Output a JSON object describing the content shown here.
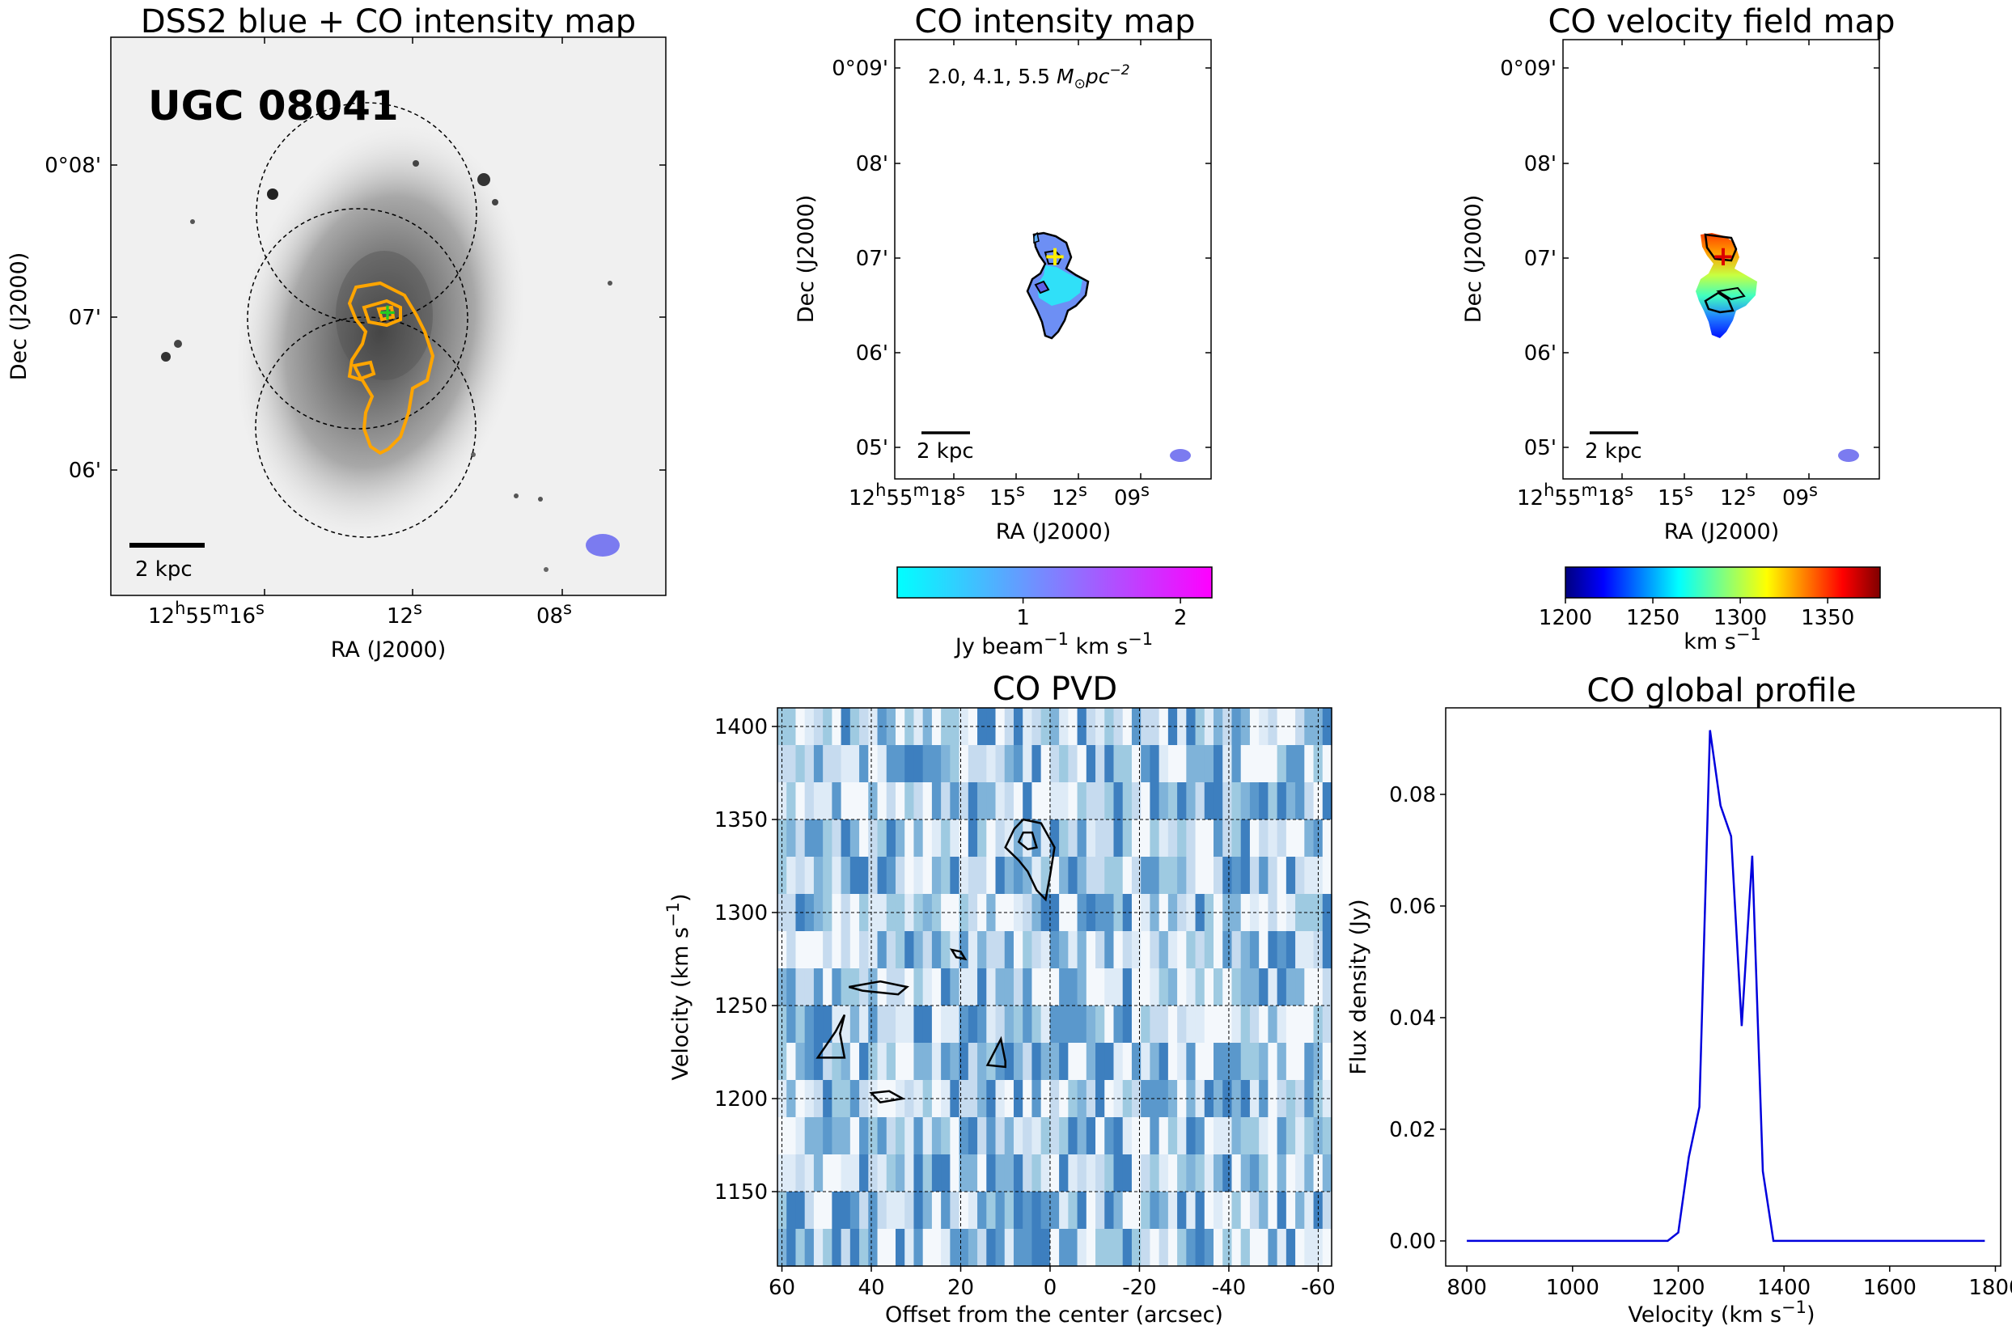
{
  "chart_data": [
    {
      "type": "image",
      "title": "DSS2 blue + CO intensity map",
      "object_label": "UGC 08041",
      "xlabel": "RA (J2000)",
      "ylabel": "Dec (J2000)",
      "x_ticks": [
        {
          "h": "12",
          "m": "55",
          "s": "16"
        },
        {
          "s": "12"
        },
        {
          "s": "08"
        }
      ],
      "y_ticks": [
        "0°08'",
        "07'",
        "06'"
      ],
      "scalebar_label": "2 kpc"
    },
    {
      "type": "image",
      "title": "CO intensity map",
      "annotation": {
        "values": "2.0, 4.1, 5.5",
        "unit_symbol": "M",
        "unit_sub": "⊙",
        "unit_rest": "pc",
        "unit_exp": "−2"
      },
      "xlabel": "RA (J2000)",
      "ylabel": "Dec (J2000)",
      "x_ticks": [
        {
          "h": "12",
          "m": "55",
          "s": "18"
        },
        {
          "s": "15"
        },
        {
          "s": "12"
        },
        {
          "s": "09"
        }
      ],
      "y_ticks": [
        "0°09'",
        "08'",
        "07'",
        "06'",
        "05'"
      ],
      "scalebar_label": "2 kpc",
      "colorbar": {
        "range": [
          0.2,
          2.2
        ],
        "ticks": [
          "1",
          "2"
        ],
        "label_parts": [
          "Jy beam",
          "−1",
          " km s",
          "−1"
        ]
      }
    },
    {
      "type": "image",
      "title": "CO velocity field map",
      "xlabel": "RA (J2000)",
      "ylabel": "Dec (J2000)",
      "x_ticks": [
        {
          "h": "12",
          "m": "55",
          "s": "18"
        },
        {
          "s": "15"
        },
        {
          "s": "12"
        },
        {
          "s": "09"
        }
      ],
      "y_ticks": [
        "0°09'",
        "08'",
        "07'",
        "06'",
        "05'"
      ],
      "scalebar_label": "2 kpc",
      "colorbar": {
        "range": [
          1200,
          1380
        ],
        "ticks": [
          "1200",
          "1250",
          "1300",
          "1350"
        ],
        "label_parts": [
          "km s",
          "−1"
        ]
      }
    },
    {
      "type": "heatmap",
      "title": "CO PVD",
      "xlabel": "Offset from the center (arcsec)",
      "ylabel_parts": [
        "Velocity (km s",
        "−1",
        ")"
      ],
      "xlim": [
        61,
        -63
      ],
      "ylim": [
        1110,
        1410
      ],
      "x_ticks": [
        "60",
        "40",
        "20",
        "0",
        "-20",
        "-40",
        "-60"
      ],
      "x_tick_values": [
        60,
        40,
        20,
        0,
        -20,
        -40,
        -60
      ],
      "y_ticks": [
        "1400",
        "1350",
        "1300",
        "1250",
        "1200",
        "1150"
      ],
      "y_tick_values": [
        1400,
        1350,
        1300,
        1250,
        1200,
        1150
      ],
      "contours": [
        [
          [
            0,
            1320
          ],
          [
            -1,
            1335
          ],
          [
            2,
            1348
          ],
          [
            6,
            1350
          ],
          [
            8,
            1345
          ],
          [
            10,
            1335
          ],
          [
            7,
            1328
          ],
          [
            5,
            1322
          ],
          [
            3,
            1312
          ],
          [
            1,
            1307
          ],
          [
            0,
            1320
          ]
        ],
        [
          [
            3,
            1335
          ],
          [
            4,
            1343
          ],
          [
            6,
            1343
          ],
          [
            7,
            1338
          ],
          [
            5,
            1334
          ],
          [
            3,
            1335
          ]
        ],
        [
          [
            45,
            1260
          ],
          [
            38,
            1263
          ],
          [
            32,
            1260
          ],
          [
            34,
            1256
          ],
          [
            42,
            1258
          ],
          [
            45,
            1260
          ]
        ],
        [
          [
            21,
            1276
          ],
          [
            22,
            1280
          ],
          [
            20,
            1279
          ],
          [
            19,
            1275
          ],
          [
            21,
            1276
          ]
        ],
        [
          [
            52,
            1222
          ],
          [
            48,
            1236
          ],
          [
            46,
            1245
          ],
          [
            47,
            1235
          ],
          [
            46,
            1222
          ],
          [
            52,
            1222
          ]
        ],
        [
          [
            38,
            1198
          ],
          [
            40,
            1203
          ],
          [
            36,
            1204
          ],
          [
            33,
            1200
          ],
          [
            38,
            1198
          ]
        ],
        [
          [
            14,
            1218
          ],
          [
            11,
            1232
          ],
          [
            10,
            1220
          ],
          [
            10,
            1217
          ],
          [
            14,
            1218
          ]
        ]
      ]
    },
    {
      "type": "line",
      "title": "CO global profile",
      "xlabel_parts": [
        "Velocity (km s",
        "−1",
        ")"
      ],
      "ylabel": "Flux density (Jy)",
      "xlim": [
        760,
        1810
      ],
      "ylim": [
        -0.0045,
        0.0955
      ],
      "x_ticks": [
        "800",
        "1000",
        "1200",
        "1400",
        "1600",
        "1800"
      ],
      "x_tick_values": [
        800,
        1000,
        1200,
        1400,
        1600,
        1800
      ],
      "y_ticks": [
        "0.00",
        "0.02",
        "0.04",
        "0.06",
        "0.08"
      ],
      "y_tick_values": [
        0.0,
        0.02,
        0.04,
        0.06,
        0.08
      ],
      "x": [
        800,
        1180,
        1200,
        1220,
        1240,
        1260,
        1280,
        1300,
        1320,
        1340,
        1360,
        1380,
        1780
      ],
      "y": [
        0.0,
        0.0,
        0.0015,
        0.015,
        0.024,
        0.0915,
        0.078,
        0.0725,
        0.0385,
        0.069,
        0.0125,
        0.0,
        0.0
      ]
    }
  ]
}
